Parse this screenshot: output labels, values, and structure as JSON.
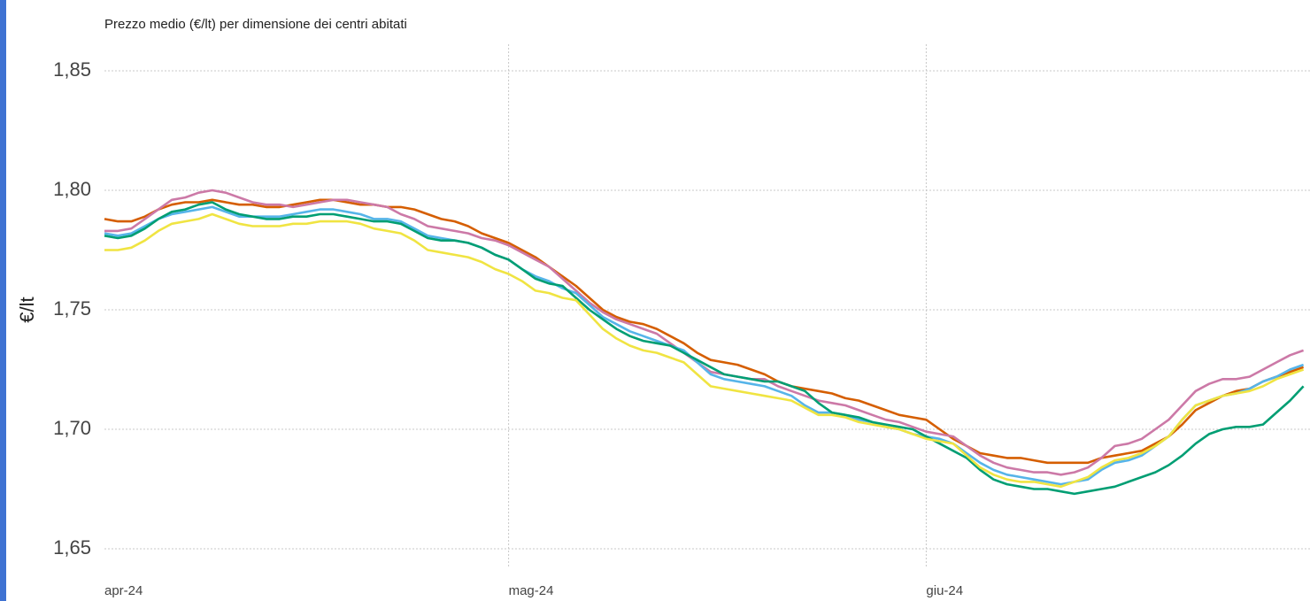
{
  "chart_data": {
    "type": "line",
    "title": "Prezzo medio (€/lt) per dimensione dei centri abitati",
    "y_label": "€/lt",
    "categories": [
      "apr-24",
      null,
      null,
      null,
      null,
      null,
      null,
      null,
      null,
      null,
      null,
      null,
      null,
      null,
      null,
      null,
      null,
      null,
      null,
      null,
      null,
      null,
      null,
      null,
      null,
      null,
      null,
      null,
      null,
      null,
      "mag-24",
      null,
      null,
      null,
      null,
      null,
      null,
      null,
      null,
      null,
      null,
      null,
      null,
      null,
      null,
      null,
      null,
      null,
      null,
      null,
      null,
      null,
      null,
      null,
      null,
      null,
      null,
      null,
      null,
      null,
      null,
      "giu-24",
      null,
      null,
      null,
      null,
      null,
      null,
      null,
      null,
      null,
      null,
      null,
      null,
      null,
      null,
      null,
      null,
      null,
      null,
      null,
      null,
      null,
      null,
      null,
      null,
      null,
      null,
      null,
      null
    ],
    "ylim": [
      1.65,
      1.85
    ],
    "yticks": [
      {
        "value": 1.65,
        "label": "1,65"
      },
      {
        "value": 1.7,
        "label": "1,70"
      },
      {
        "value": 1.75,
        "label": "1,75"
      },
      {
        "value": 1.8,
        "label": "1,80"
      },
      {
        "value": 1.85,
        "label": "1,85"
      }
    ],
    "grid": true,
    "series": [
      {
        "color": "#d55e00",
        "values": [
          1.788,
          1.787,
          1.787,
          1.789,
          1.792,
          1.794,
          1.795,
          1.795,
          1.796,
          1.795,
          1.794,
          1.794,
          1.793,
          1.793,
          1.794,
          1.795,
          1.796,
          1.796,
          1.795,
          1.794,
          1.794,
          1.793,
          1.793,
          1.792,
          1.79,
          1.788,
          1.787,
          1.785,
          1.782,
          1.78,
          1.778,
          1.775,
          1.772,
          1.768,
          1.764,
          1.76,
          1.755,
          1.75,
          1.747,
          1.745,
          1.744,
          1.742,
          1.739,
          1.736,
          1.732,
          1.729,
          1.728,
          1.727,
          1.725,
          1.723,
          1.72,
          1.718,
          1.717,
          1.716,
          1.715,
          1.713,
          1.712,
          1.71,
          1.708,
          1.706,
          1.705,
          1.704,
          1.7,
          1.696,
          1.693,
          1.69,
          1.689,
          1.688,
          1.688,
          1.687,
          1.686,
          1.686,
          1.686,
          1.686,
          1.688,
          1.689,
          1.69,
          1.691,
          1.694,
          1.697,
          1.702,
          1.708,
          1.711,
          1.714,
          1.716,
          1.717,
          1.72,
          1.722,
          1.724,
          1.726
        ]
      },
      {
        "color": "#cc79a7",
        "values": [
          1.783,
          1.783,
          1.784,
          1.788,
          1.792,
          1.796,
          1.797,
          1.799,
          1.8,
          1.799,
          1.797,
          1.795,
          1.794,
          1.794,
          1.793,
          1.794,
          1.795,
          1.796,
          1.796,
          1.795,
          1.794,
          1.793,
          1.79,
          1.788,
          1.785,
          1.784,
          1.783,
          1.782,
          1.78,
          1.779,
          1.777,
          1.774,
          1.771,
          1.768,
          1.763,
          1.758,
          1.753,
          1.749,
          1.746,
          1.744,
          1.742,
          1.74,
          1.736,
          1.732,
          1.728,
          1.724,
          1.723,
          1.722,
          1.721,
          1.721,
          1.718,
          1.716,
          1.714,
          1.712,
          1.711,
          1.71,
          1.708,
          1.706,
          1.704,
          1.703,
          1.701,
          1.699,
          1.698,
          1.697,
          1.693,
          1.689,
          1.686,
          1.684,
          1.683,
          1.682,
          1.682,
          1.681,
          1.682,
          1.684,
          1.688,
          1.693,
          1.694,
          1.696,
          1.7,
          1.704,
          1.71,
          1.716,
          1.719,
          1.721,
          1.721,
          1.722,
          1.725,
          1.728,
          1.731,
          1.733
        ]
      },
      {
        "color": "#56b4e9",
        "values": [
          1.782,
          1.781,
          1.782,
          1.785,
          1.788,
          1.79,
          1.791,
          1.792,
          1.793,
          1.791,
          1.789,
          1.789,
          1.789,
          1.789,
          1.79,
          1.791,
          1.792,
          1.792,
          1.791,
          1.79,
          1.788,
          1.788,
          1.787,
          1.784,
          1.781,
          1.78,
          1.779,
          1.778,
          1.776,
          1.773,
          1.771,
          1.767,
          1.764,
          1.762,
          1.759,
          1.757,
          1.752,
          1.747,
          1.744,
          1.741,
          1.739,
          1.737,
          1.735,
          1.733,
          1.728,
          1.723,
          1.721,
          1.72,
          1.719,
          1.718,
          1.716,
          1.714,
          1.71,
          1.707,
          1.707,
          1.706,
          1.704,
          1.703,
          1.701,
          1.7,
          1.698,
          1.697,
          1.696,
          1.694,
          1.69,
          1.686,
          1.683,
          1.681,
          1.68,
          1.679,
          1.678,
          1.677,
          1.678,
          1.679,
          1.683,
          1.686,
          1.687,
          1.689,
          1.693,
          1.697,
          1.704,
          1.71,
          1.712,
          1.714,
          1.715,
          1.717,
          1.72,
          1.722,
          1.725,
          1.727
        ]
      },
      {
        "color": "#009e73",
        "values": [
          1.781,
          1.78,
          1.781,
          1.784,
          1.788,
          1.791,
          1.792,
          1.794,
          1.795,
          1.792,
          1.79,
          1.789,
          1.788,
          1.788,
          1.789,
          1.789,
          1.79,
          1.79,
          1.789,
          1.788,
          1.787,
          1.787,
          1.786,
          1.783,
          1.78,
          1.779,
          1.779,
          1.778,
          1.776,
          1.773,
          1.771,
          1.767,
          1.763,
          1.761,
          1.76,
          1.755,
          1.75,
          1.746,
          1.742,
          1.739,
          1.737,
          1.736,
          1.735,
          1.732,
          1.729,
          1.726,
          1.723,
          1.722,
          1.721,
          1.72,
          1.72,
          1.718,
          1.716,
          1.711,
          1.707,
          1.706,
          1.705,
          1.703,
          1.702,
          1.701,
          1.7,
          1.697,
          1.694,
          1.691,
          1.688,
          1.683,
          1.679,
          1.677,
          1.676,
          1.675,
          1.675,
          1.674,
          1.673,
          1.674,
          1.675,
          1.676,
          1.678,
          1.68,
          1.682,
          1.685,
          1.689,
          1.694,
          1.698,
          1.7,
          1.701,
          1.701,
          1.702,
          1.707,
          1.712,
          1.718
        ]
      },
      {
        "color": "#f0e442",
        "values": [
          1.775,
          1.775,
          1.776,
          1.779,
          1.783,
          1.786,
          1.787,
          1.788,
          1.79,
          1.788,
          1.786,
          1.785,
          1.785,
          1.785,
          1.786,
          1.786,
          1.787,
          1.787,
          1.787,
          1.786,
          1.784,
          1.783,
          1.782,
          1.779,
          1.775,
          1.774,
          1.773,
          1.772,
          1.77,
          1.767,
          1.765,
          1.762,
          1.758,
          1.757,
          1.755,
          1.754,
          1.748,
          1.742,
          1.738,
          1.735,
          1.733,
          1.732,
          1.73,
          1.728,
          1.723,
          1.718,
          1.717,
          1.716,
          1.715,
          1.714,
          1.713,
          1.712,
          1.709,
          1.706,
          1.706,
          1.705,
          1.703,
          1.702,
          1.701,
          1.7,
          1.698,
          1.696,
          1.695,
          1.694,
          1.689,
          1.684,
          1.681,
          1.679,
          1.678,
          1.678,
          1.677,
          1.676,
          1.678,
          1.68,
          1.684,
          1.687,
          1.688,
          1.69,
          1.693,
          1.697,
          1.704,
          1.71,
          1.712,
          1.714,
          1.715,
          1.716,
          1.718,
          1.721,
          1.723,
          1.725
        ]
      }
    ]
  }
}
